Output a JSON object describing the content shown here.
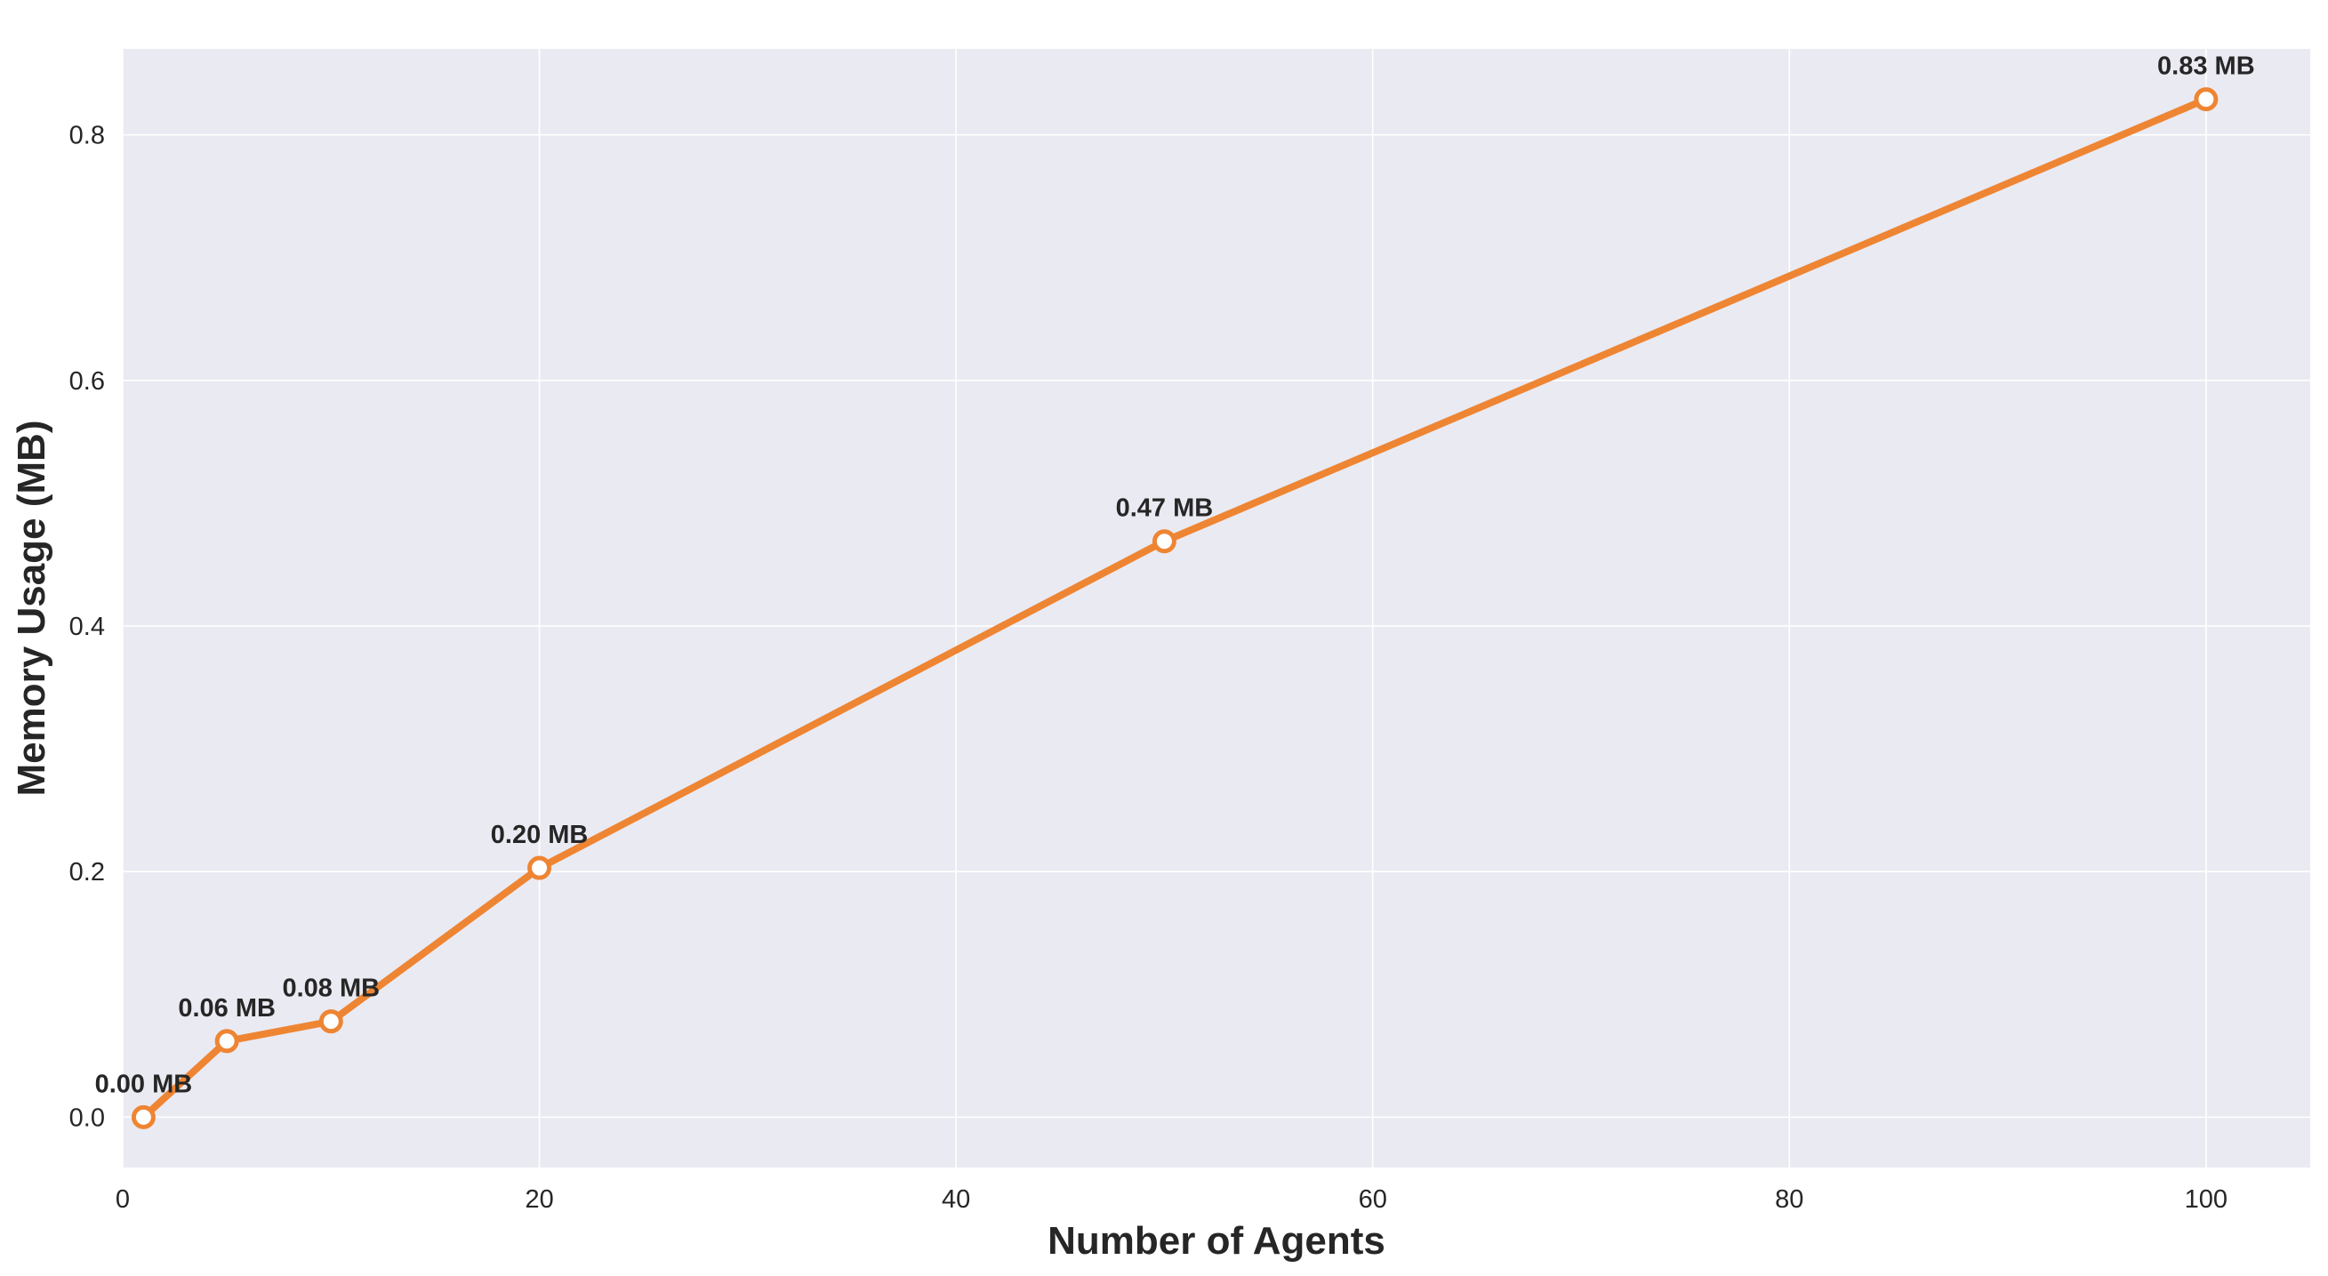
{
  "chart_data": {
    "type": "line",
    "title": "",
    "xlabel": "Number of Agents",
    "ylabel": "Memory Usage (MB)",
    "xlim": [
      0,
      105
    ],
    "ylim": [
      -0.041,
      0.87
    ],
    "xticks": [
      0,
      20,
      40,
      60,
      80,
      100
    ],
    "xtick_labels": [
      "0",
      "20",
      "40",
      "60",
      "80",
      "100"
    ],
    "yticks": [
      0.0,
      0.2,
      0.4,
      0.6,
      0.8
    ],
    "ytick_labels": [
      "0.0",
      "0.2",
      "0.4",
      "0.6",
      "0.8"
    ],
    "grid": true,
    "legend": "none",
    "colors": {
      "line": "#ee8533",
      "plot_background": "#eaeaf2",
      "grid": "#ffffff",
      "marker_fill": "#ffffff",
      "text": "#262626"
    },
    "series": [
      {
        "x": [
          1,
          5,
          10,
          20,
          50,
          100
        ],
        "values": [
          0.0,
          0.062,
          0.078,
          0.203,
          0.469,
          0.829
        ],
        "labels": [
          "0.00 MB",
          "0.06 MB",
          "0.08 MB",
          "0.20 MB",
          "0.47 MB",
          "0.83 MB"
        ]
      }
    ]
  }
}
